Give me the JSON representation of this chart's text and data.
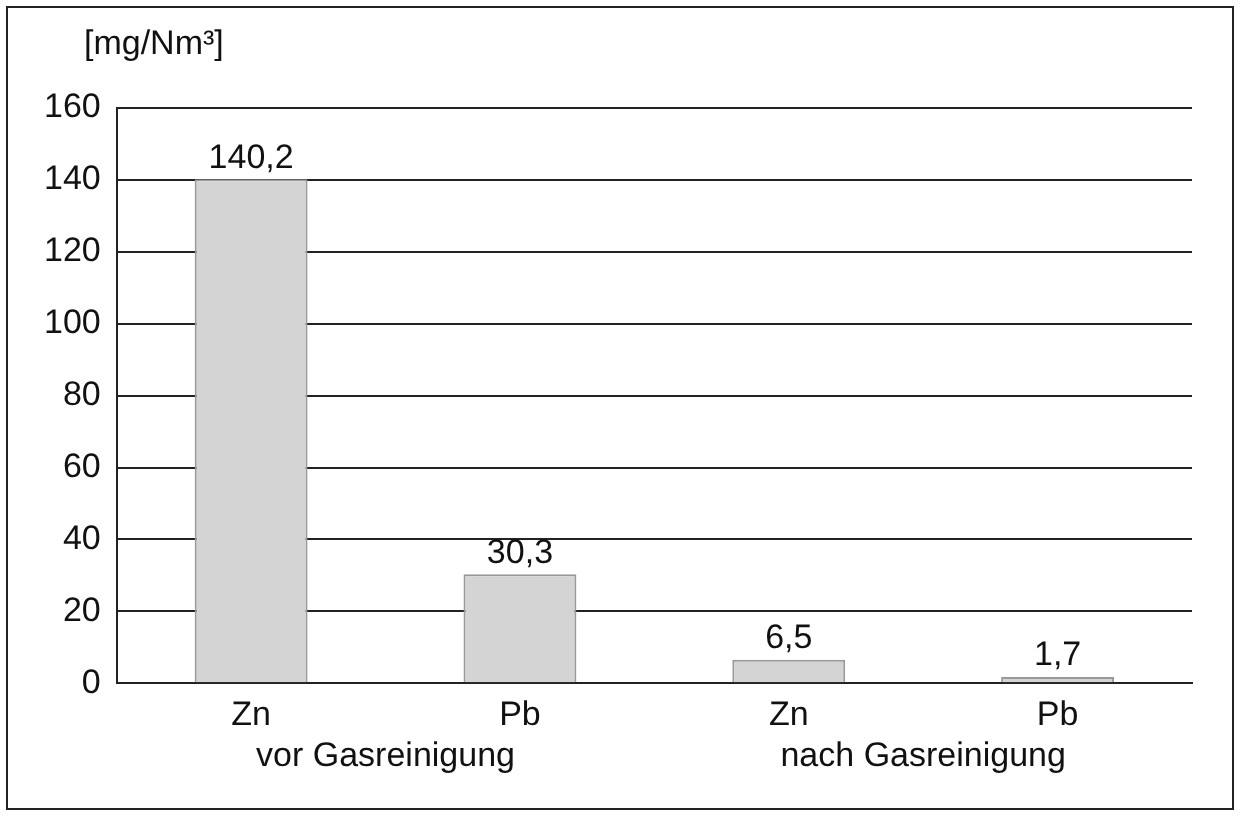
{
  "chart_data": {
    "type": "bar",
    "ylabel": "[mg/Nm³]",
    "categories": [
      "Zn",
      "Pb",
      "Zn",
      "Pb"
    ],
    "values": [
      140.2,
      30.3,
      6.5,
      1.7
    ],
    "value_labels": [
      "140,2",
      "30,3",
      "6,5",
      "1,7"
    ],
    "color": "#d4d4d4",
    "ylim": [
      0,
      160
    ],
    "yticks": [
      0,
      20,
      40,
      60,
      80,
      100,
      120,
      140,
      160
    ],
    "grid": "y",
    "annotations": [
      "vor Gasreinigung",
      "nach Gasreinigung"
    ]
  }
}
